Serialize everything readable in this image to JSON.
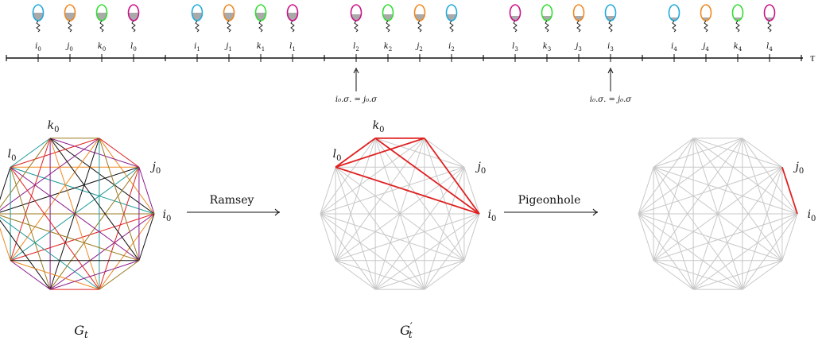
{
  "colors": {
    "blue": "#22aadd",
    "orange": "#ee8822",
    "green": "#33dd33",
    "magenta": "#cc1188",
    "gray_fill": "#aaaaaa",
    "graph_gray": "#c8c8c8",
    "highlight_red": "#e02020",
    "teal": "#1e9a9a",
    "purple": "#8a1a8a",
    "olive": "#9a7a20",
    "black": "#111111"
  },
  "timeline": {
    "axis_label": "τ",
    "groups": [
      {
        "balloons": [
          {
            "label": "i",
            "sub": "0",
            "color": "blue",
            "fill": 0.5
          },
          {
            "label": "j",
            "sub": "0",
            "color": "orange",
            "fill": 0.5
          },
          {
            "label": "k",
            "sub": "0",
            "color": "green",
            "fill": 0.5
          },
          {
            "label": "l",
            "sub": "0",
            "color": "magenta",
            "fill": 0.5
          }
        ]
      },
      {
        "balloons": [
          {
            "label": "i",
            "sub": "1",
            "color": "blue",
            "fill": 0.5
          },
          {
            "label": "j",
            "sub": "1",
            "color": "orange",
            "fill": 0.5
          },
          {
            "label": "k",
            "sub": "1",
            "color": "green",
            "fill": 0.5
          },
          {
            "label": "l",
            "sub": "1",
            "color": "magenta",
            "fill": 0.5
          }
        ]
      },
      {
        "balloons": [
          {
            "label": "l",
            "sub": "2",
            "color": "magenta",
            "fill": 0.4
          },
          {
            "label": "k",
            "sub": "2",
            "color": "green",
            "fill": 0.4
          },
          {
            "label": "j",
            "sub": "2",
            "color": "orange",
            "fill": 0.4
          },
          {
            "label": "i",
            "sub": "2",
            "color": "blue",
            "fill": 0.4
          }
        ]
      },
      {
        "balloons": [
          {
            "label": "l",
            "sub": "3",
            "color": "magenta",
            "fill": 0.3
          },
          {
            "label": "k",
            "sub": "3",
            "color": "green",
            "fill": 0.3
          },
          {
            "label": "j",
            "sub": "3",
            "color": "orange",
            "fill": 0.3
          },
          {
            "label": "i",
            "sub": "3",
            "color": "blue",
            "fill": 0.3
          }
        ]
      },
      {
        "balloons": [
          {
            "label": "i",
            "sub": "4",
            "color": "blue",
            "fill": 0.2
          },
          {
            "label": "j",
            "sub": "4",
            "color": "orange",
            "fill": 0.2
          },
          {
            "label": "k",
            "sub": "4",
            "color": "green",
            "fill": 0.2
          },
          {
            "label": "l",
            "sub": "4",
            "color": "magenta",
            "fill": 0.2
          }
        ]
      }
    ],
    "annotations": [
      {
        "text": "i₀.σ. = j₀.σ"
      },
      {
        "text": "i₀.σ. = j₀.σ"
      }
    ]
  },
  "graphs": [
    {
      "name_main": "G",
      "name_sub": "t",
      "name_prime": "",
      "vertex_labels": [
        {
          "letter": "l",
          "sub": "0"
        },
        {
          "letter": "k",
          "sub": "0"
        },
        {
          "letter": "j",
          "sub": "0"
        },
        {
          "letter": "i",
          "sub": "0"
        }
      ]
    },
    {
      "name_main": "G",
      "name_sub": "t",
      "name_prime": "′",
      "vertex_labels": [
        {
          "letter": "l",
          "sub": "0"
        },
        {
          "letter": "k",
          "sub": "0"
        },
        {
          "letter": "j",
          "sub": "0"
        },
        {
          "letter": "i",
          "sub": "0"
        }
      ]
    },
    {
      "name_main": "",
      "name_sub": "",
      "name_prime": "",
      "vertex_labels": [
        {
          "letter": "j",
          "sub": "0"
        },
        {
          "letter": "i",
          "sub": "0"
        }
      ]
    }
  ],
  "arrows": [
    {
      "label": "Ramsey"
    },
    {
      "label": "Pigeonhole"
    }
  ]
}
